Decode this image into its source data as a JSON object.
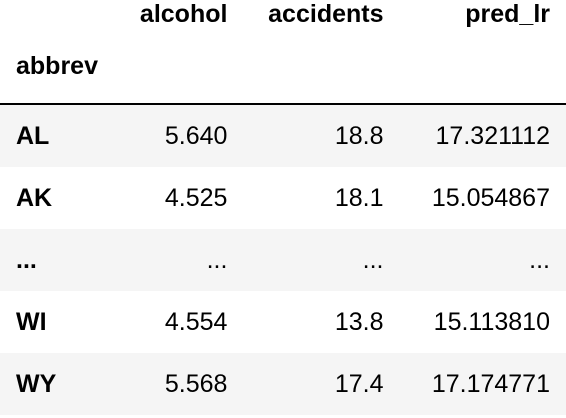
{
  "table": {
    "columns": [
      "alcohol",
      "accidents",
      "pred_lr"
    ],
    "index_name": "abbrev",
    "rows": [
      {
        "index": "AL",
        "values": [
          "5.640",
          "18.8",
          "17.321112"
        ]
      },
      {
        "index": "AK",
        "values": [
          "4.525",
          "18.1",
          "15.054867"
        ]
      },
      {
        "index": "...",
        "values": [
          "...",
          "...",
          "..."
        ]
      },
      {
        "index": "WI",
        "values": [
          "4.554",
          "13.8",
          "15.113810"
        ]
      },
      {
        "index": "WY",
        "values": [
          "5.568",
          "17.4",
          "17.174771"
        ]
      }
    ]
  },
  "colors": {
    "stripe": "#f5f5f5",
    "rule": "#000000"
  }
}
